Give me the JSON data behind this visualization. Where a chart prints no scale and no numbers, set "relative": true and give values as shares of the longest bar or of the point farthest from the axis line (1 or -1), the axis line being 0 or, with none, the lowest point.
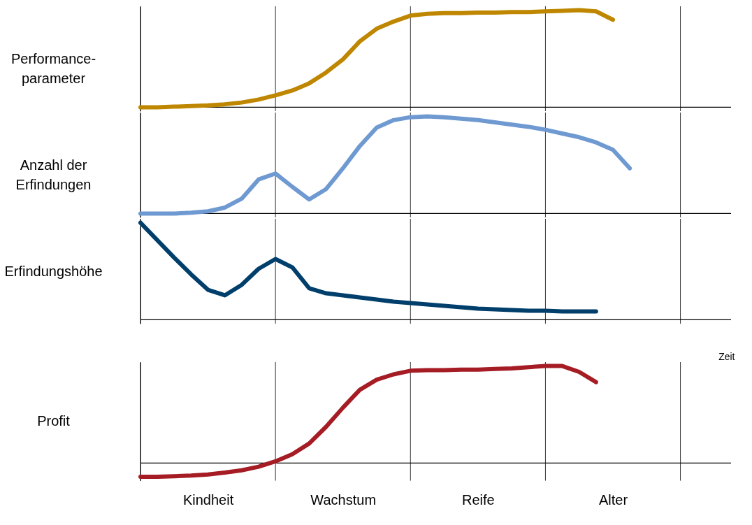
{
  "chart_data": [
    {
      "type": "line",
      "ylabel": "Performance-parameter",
      "relative": true,
      "grid": "x",
      "categories": [
        null,
        null,
        null,
        null,
        null,
        null,
        null,
        null,
        null,
        null,
        null,
        null,
        null,
        null,
        null,
        null,
        null,
        null,
        null,
        null,
        null,
        null,
        null,
        null,
        null,
        null,
        null,
        null,
        null,
        null,
        null,
        null,
        null,
        null,
        null,
        null
      ],
      "series": [
        {
          "color": "#bf8600",
          "values": [
            0,
            0,
            0.006,
            0.012,
            0.019,
            0.031,
            0.049,
            0.08,
            0.123,
            0.173,
            0.247,
            0.358,
            0.494,
            0.679,
            0.809,
            0.883,
            0.944,
            0.963,
            0.969,
            0.969,
            0.975,
            0.975,
            0.981,
            0.981,
            0.988,
            0.994,
            1,
            0.988,
            0.901,
            null,
            null,
            null,
            null,
            null,
            null,
            null
          ]
        }
      ]
    },
    {
      "type": "line",
      "ylabel": "Anzahl der Erfindungen",
      "relative": true,
      "grid": "x",
      "categories": [
        null,
        null,
        null,
        null,
        null,
        null,
        null,
        null,
        null,
        null,
        null,
        null,
        null,
        null,
        null,
        null,
        null,
        null,
        null,
        null,
        null,
        null,
        null,
        null,
        null,
        null,
        null,
        null,
        null,
        null,
        null,
        null,
        null,
        null,
        null,
        null
      ],
      "series": [
        {
          "color": "#6f99d1",
          "values": [
            0,
            0,
            0,
            0.008,
            0.023,
            0.061,
            0.153,
            0.351,
            0.412,
            0.275,
            0.145,
            0.252,
            0.466,
            0.695,
            0.885,
            0.962,
            0.992,
            1,
            0.992,
            0.977,
            0.962,
            0.939,
            0.916,
            0.893,
            0.863,
            0.824,
            0.786,
            0.733,
            0.656,
            0.466,
            null,
            null,
            null,
            null,
            null,
            null
          ]
        }
      ]
    },
    {
      "type": "line",
      "ylabel": "Erfindungshöhe",
      "xlabel": "Zeit",
      "relative": true,
      "grid": "x",
      "categories": [
        null,
        null,
        null,
        null,
        null,
        null,
        null,
        null,
        null,
        null,
        null,
        null,
        null,
        null,
        null,
        null,
        null,
        null,
        null,
        null,
        null,
        null,
        null,
        null,
        null,
        null,
        null,
        null,
        null,
        null,
        null,
        null,
        null,
        null,
        null,
        null
      ],
      "series": [
        {
          "color": "#003f6b",
          "values": [
            1,
            0.82,
            0.64,
            0.468,
            0.309,
            0.252,
            0.36,
            0.525,
            0.626,
            0.54,
            0.324,
            0.273,
            0.252,
            0.23,
            0.209,
            0.187,
            0.173,
            0.158,
            0.144,
            0.129,
            0.115,
            0.108,
            0.101,
            0.094,
            0.094,
            0.086,
            0.086,
            0.086,
            null,
            null,
            null,
            null,
            null,
            null,
            null,
            null
          ]
        }
      ]
    },
    {
      "type": "line",
      "ylabel": "Profit",
      "relative": true,
      "grid": "x",
      "categories": [
        null,
        null,
        null,
        null,
        "Kindheit",
        null,
        null,
        null,
        null,
        null,
        null,
        null,
        "Wachstum",
        null,
        null,
        null,
        null,
        null,
        null,
        null,
        "Reife",
        null,
        null,
        null,
        null,
        null,
        null,
        null,
        "Alter",
        null,
        null,
        null,
        null,
        null,
        null,
        null
      ],
      "series": [
        {
          "color": "#a51c24",
          "values": [
            -0.141,
            -0.141,
            -0.135,
            -0.129,
            -0.117,
            -0.098,
            -0.074,
            -0.037,
            0.018,
            0.092,
            0.202,
            0.374,
            0.571,
            0.755,
            0.859,
            0.914,
            0.951,
            0.957,
            0.957,
            0.963,
            0.963,
            0.969,
            0.975,
            0.988,
            1,
            1,
            0.939,
            0.834,
            null,
            null,
            null,
            null,
            null,
            null,
            null,
            null
          ]
        }
      ]
    }
  ]
}
